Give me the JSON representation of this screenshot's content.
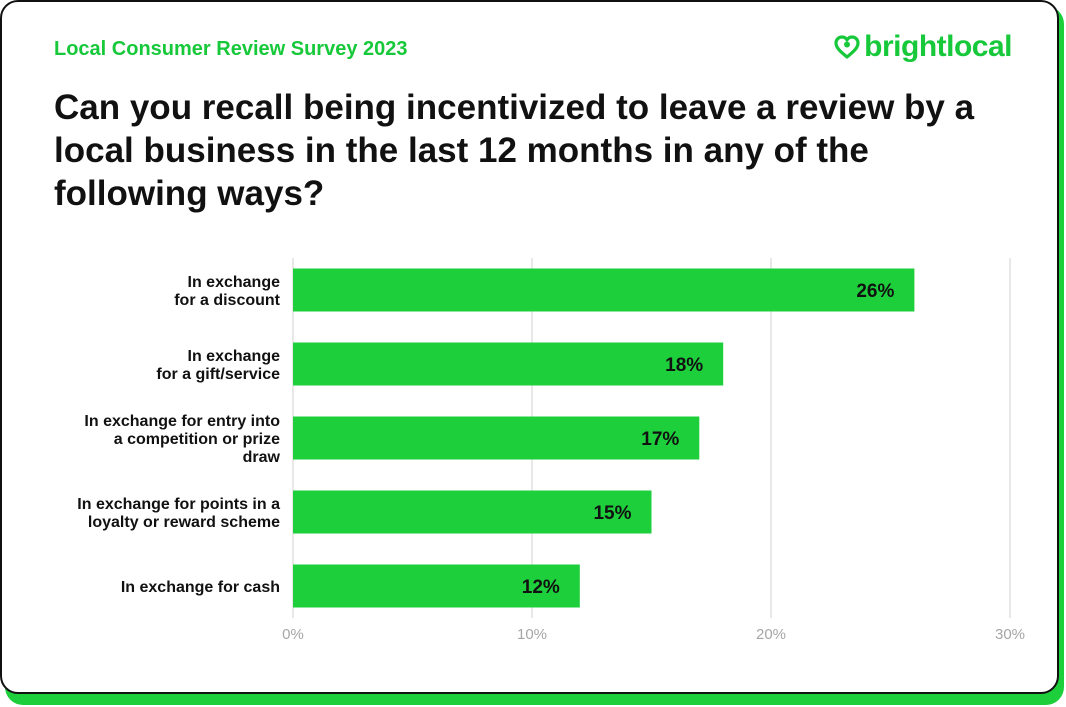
{
  "header": {
    "subtitle": "Local Consumer Review Survey 2023",
    "logo_text": "brightlocal",
    "logo_icon": "heart-pin-icon",
    "title": "Can you recall being incentivized to leave a review by a local business in the last 12 months in any of the following ways?"
  },
  "colors": {
    "accent": "#17c93a",
    "bar": "#1ecf3c",
    "grid": "#d9d9d9",
    "text": "#111111",
    "tick": "#a6a6a6"
  },
  "chart_data": {
    "type": "bar",
    "orientation": "horizontal",
    "title": "Can you recall being incentivized to leave a review by a local business in the last 12 months in any of the following ways?",
    "categories": [
      [
        "In exchange",
        "for a discount"
      ],
      [
        "In exchange",
        "for a gift/service"
      ],
      [
        "In exchange for entry into",
        "a competition or prize",
        "draw"
      ],
      [
        "In exchange for points in a",
        "loyalty or reward scheme"
      ],
      [
        "In exchange for cash"
      ]
    ],
    "values": [
      26,
      18,
      17,
      15,
      12
    ],
    "value_labels": [
      "26%",
      "18%",
      "17%",
      "15%",
      "12%"
    ],
    "xlim": [
      0,
      30
    ],
    "ticks": [
      0,
      10,
      20,
      30
    ],
    "tick_labels": [
      "0%",
      "10%",
      "20%",
      "30%"
    ],
    "grid": true,
    "legend": "none"
  }
}
